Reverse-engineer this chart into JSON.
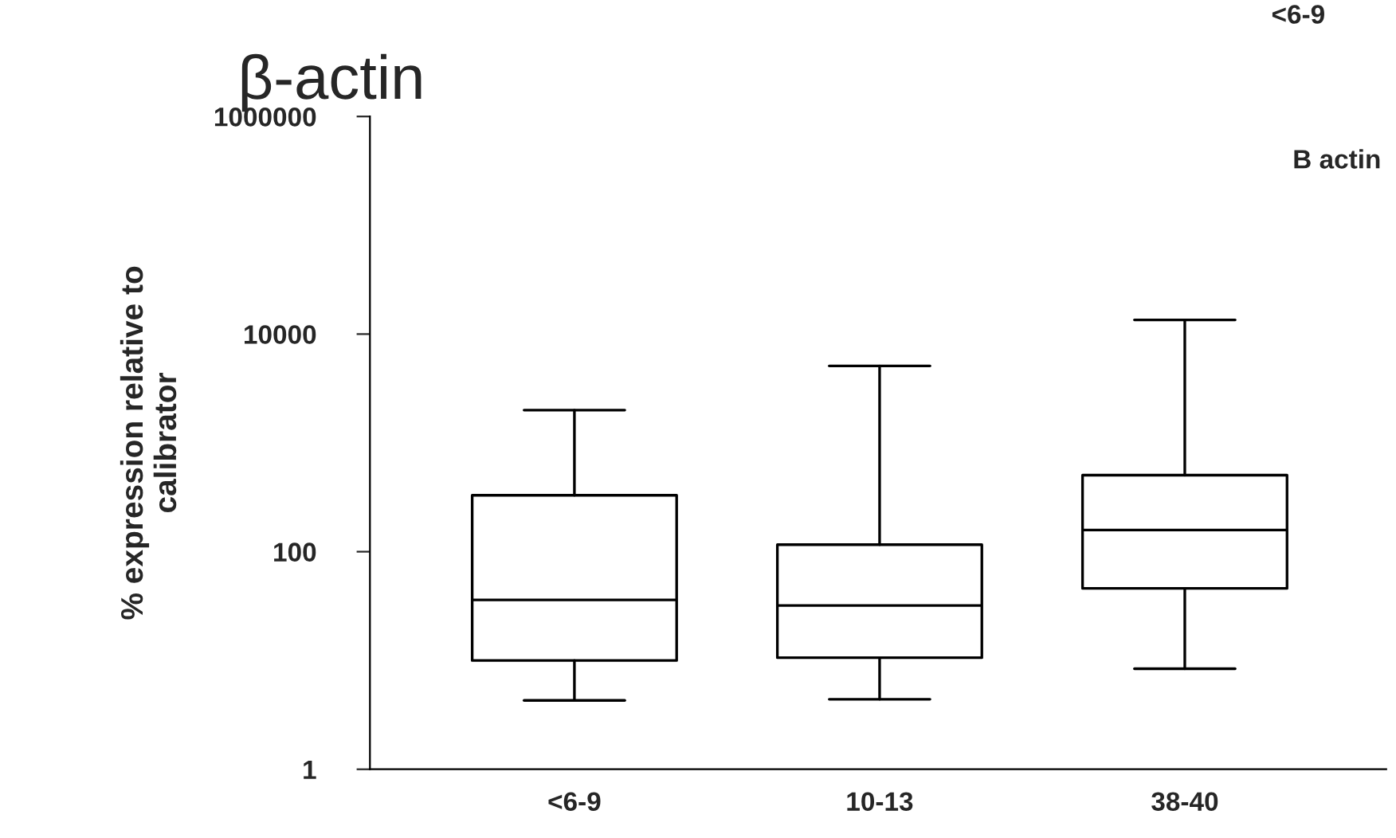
{
  "chart_data": {
    "type": "box",
    "title": "β-actin",
    "ylabel": "% expression relative to\ncalibrator",
    "categories": [
      "<6-9",
      "10-13",
      "38-40"
    ],
    "boxes": [
      {
        "low": 4.3,
        "q1": 10,
        "median": 36,
        "q3": 330,
        "high": 2000
      },
      {
        "low": 4.4,
        "q1": 10.6,
        "median": 32,
        "q3": 116,
        "high": 5100
      },
      {
        "low": 8.4,
        "q1": 46,
        "median": 158,
        "q3": 505,
        "high": 13500
      }
    ],
    "log": "y",
    "ylim": [
      1,
      1000000
    ],
    "yticks": [
      1,
      100,
      10000,
      1000000
    ],
    "grid": false,
    "legend": false,
    "annotations": [
      "B actin",
      "<6-9"
    ]
  }
}
